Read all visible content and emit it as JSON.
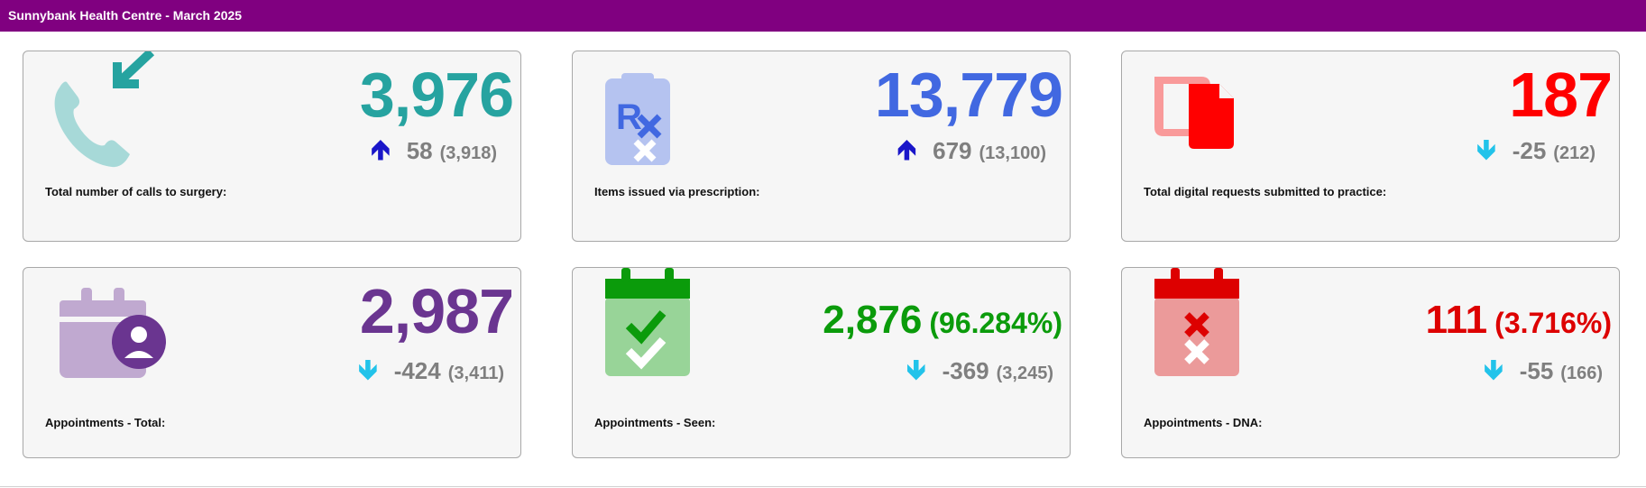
{
  "header": {
    "title": "Sunnybank Health Centre - March 2025"
  },
  "cards": [
    {
      "label": "Total number of calls to surgery:",
      "value": "3,976",
      "percent": "",
      "change": "58",
      "previous": "(3,918)",
      "trend": "up",
      "icon": "incoming-call-icon",
      "value_color": "#26a3a0",
      "arrow_color": "#1a16c9"
    },
    {
      "label": "Items issued via prescription:",
      "value": "13,779",
      "percent": "",
      "change": "679",
      "previous": "(13,100)",
      "trend": "up",
      "icon": "prescription-icon",
      "value_color": "#4168e1",
      "arrow_color": "#1a16c9"
    },
    {
      "label": "Total digital requests submitted to practice:",
      "value": "187",
      "percent": "",
      "change": "-25",
      "previous": "(212)",
      "trend": "down",
      "icon": "digital-request-icon",
      "value_color": "#ff0000",
      "arrow_color": "#22c3ea"
    },
    {
      "label": "Appointments - Total:",
      "value": "2,987",
      "percent": "",
      "change": "-424",
      "previous": "(3,411)",
      "trend": "down",
      "icon": "calendar-person-icon",
      "value_color": "#6a3590",
      "arrow_color": "#22c3ea"
    },
    {
      "label": "Appointments - Seen:",
      "value": "2,876",
      "percent": "(96.284%)",
      "change": "-369",
      "previous": "(3,245)",
      "trend": "down",
      "icon": "calendar-check-icon",
      "value_color": "#0b9b0b",
      "arrow_color": "#22c3ea"
    },
    {
      "label": "Appointments - DNA:",
      "value": "111",
      "percent": "(3.716%)",
      "change": "-55",
      "previous": "(166)",
      "trend": "down",
      "icon": "calendar-cross-icon",
      "value_color": "#dd0000",
      "arrow_color": "#22c3ea"
    }
  ]
}
